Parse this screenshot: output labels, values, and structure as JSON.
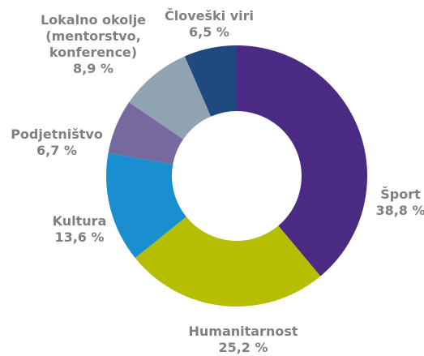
{
  "chart_data": {
    "type": "donut",
    "categories": [
      "Šport",
      "Humanitarnost",
      "Kultura",
      "Podjetništvo",
      "Lokalno okolje (mentorstvo, konference)",
      "Človeški viri"
    ],
    "values": [
      38.8,
      25.2,
      13.6,
      6.7,
      8.9,
      6.5
    ],
    "value_labels": [
      "38,8 %",
      "25,2 %",
      "13,6 %",
      "6,7 %",
      "8,9 %",
      "6,5 %"
    ],
    "colors": [
      "#4b2a84",
      "#b5be00",
      "#1a8fd0",
      "#75699e",
      "#8fa3b1",
      "#1f4a7e"
    ]
  }
}
